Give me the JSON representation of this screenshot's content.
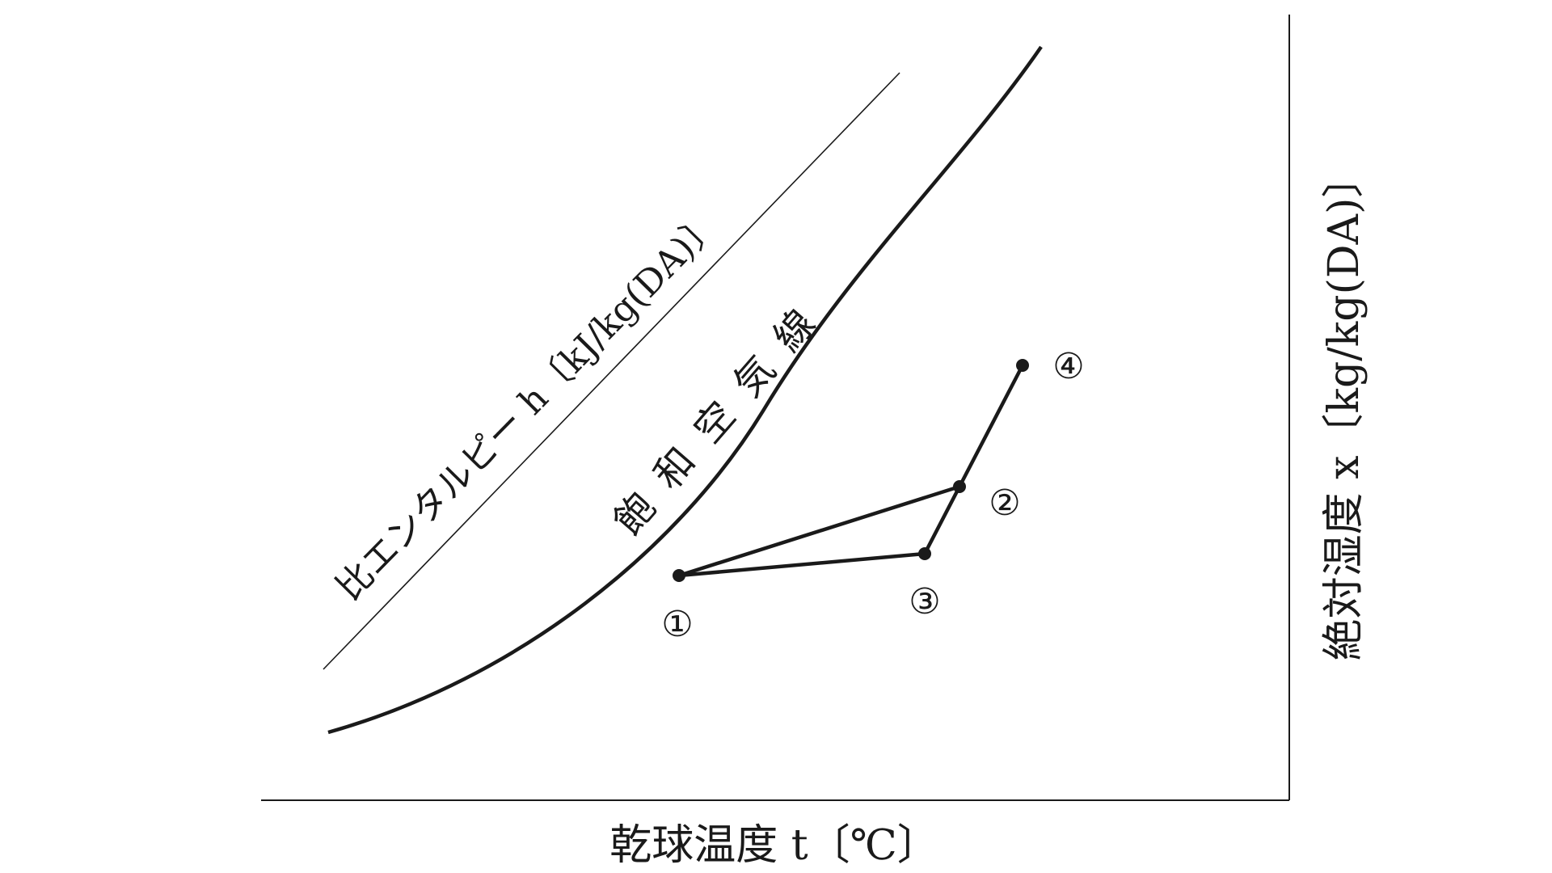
{
  "diagram": {
    "x_axis_label": "乾球温度 t〔℃〕",
    "y_axis_label": "絶対湿度 x〔kg/kg(DA)〕",
    "enthalpy_label": "比エンタルピー h〔kJ/kg(DA)〕",
    "saturation_label": "飽 和 空 気 線",
    "points": [
      {
        "id": "1",
        "label": "①"
      },
      {
        "id": "2",
        "label": "②"
      },
      {
        "id": "3",
        "label": "③"
      },
      {
        "id": "4",
        "label": "④"
      }
    ],
    "connections": [
      [
        "1",
        "2"
      ],
      [
        "1",
        "3"
      ],
      [
        "3",
        "2"
      ],
      [
        "2",
        "4"
      ]
    ],
    "colors": {
      "line": "#1a1a1a",
      "background": "#ffffff"
    }
  }
}
